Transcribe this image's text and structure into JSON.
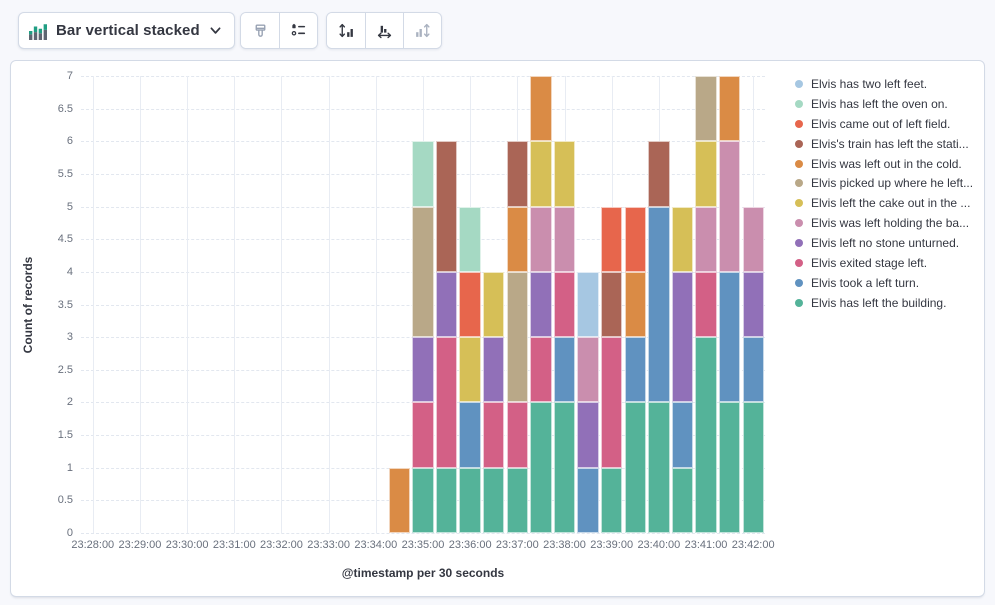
{
  "toolbar": {
    "chart_type": {
      "label": "Bar vertical stacked",
      "icon": "bar-vertical-stacked-icon",
      "chevron": "chevron-down-icon"
    },
    "style_buttons": [
      {
        "icon": "paint-brush-icon",
        "enabled": false
      },
      {
        "icon": "legend-settings-icon",
        "enabled": true
      }
    ],
    "axis_buttons": [
      {
        "icon": "axis-left-icon",
        "enabled": true
      },
      {
        "icon": "axis-bottom-icon",
        "enabled": true
      },
      {
        "icon": "axis-right-icon",
        "enabled": false
      }
    ]
  },
  "chart_data": {
    "type": "bar",
    "stacked": true,
    "orientation": "vertical",
    "xlabel": "@timestamp per 30 seconds",
    "ylabel": "Count of records",
    "ylim": [
      0,
      7
    ],
    "y_tick_labels": [
      "0",
      "0.5",
      "1",
      "1.5",
      "2",
      "2.5",
      "3",
      "3.5",
      "4",
      "4.5",
      "5",
      "5.5",
      "6",
      "6.5",
      "7"
    ],
    "y_tick_step": 0.5,
    "band_count": 29,
    "band_interval_seconds": 30,
    "x_start": "23:28:00",
    "x_tick_labels": [
      "23:28:00",
      "23:29:00",
      "23:30:00",
      "23:31:00",
      "23:32:00",
      "23:33:00",
      "23:34:00",
      "23:35:00",
      "23:36:00",
      "23:37:00",
      "23:38:00",
      "23:39:00",
      "23:40:00",
      "23:41:00",
      "23:42:00"
    ],
    "grid": {
      "horizontal": "dashed",
      "vertical": "solid"
    },
    "legend_position": "right",
    "legend": [
      {
        "label": "Elvis has two left feet.",
        "color": "#A6C7E2"
      },
      {
        "label": "Elvis has left the oven on.",
        "color": "#A5D9C3"
      },
      {
        "label": "Elvis came out of left field.",
        "color": "#E7664C"
      },
      {
        "label": "Elvis's train has left the stati...",
        "color": "#AA6556"
      },
      {
        "label": "Elvis was left out in the cold.",
        "color": "#DA8B45"
      },
      {
        "label": "Elvis picked up where he left...",
        "color": "#B9A888"
      },
      {
        "label": "Elvis left the cake out in the ...",
        "color": "#D6BF57"
      },
      {
        "label": "Elvis was left holding the ba...",
        "color": "#CA8EAE"
      },
      {
        "label": "Elvis left no stone unturned.",
        "color": "#9170B8"
      },
      {
        "label": "Elvis exited stage left.",
        "color": "#D36086"
      },
      {
        "label": "Elvis took a left turn.",
        "color": "#6092C0"
      },
      {
        "label": "Elvis has left the building.",
        "color": "#54B399"
      }
    ],
    "bars": [
      {
        "time": "23:34:30",
        "band": 13,
        "total": 1,
        "segments": [
          [
            4,
            1
          ]
        ]
      },
      {
        "time": "23:35:00",
        "band": 14,
        "total": 6,
        "segments": [
          [
            11,
            1
          ],
          [
            9,
            1
          ],
          [
            8,
            1
          ],
          [
            5,
            2
          ],
          [
            1,
            1
          ]
        ]
      },
      {
        "time": "23:35:30",
        "band": 15,
        "total": 6,
        "segments": [
          [
            11,
            1
          ],
          [
            9,
            2
          ],
          [
            8,
            1
          ],
          [
            3,
            2
          ]
        ]
      },
      {
        "time": "23:36:00",
        "band": 16,
        "total": 5,
        "segments": [
          [
            11,
            1
          ],
          [
            10,
            1
          ],
          [
            6,
            1
          ],
          [
            2,
            1
          ],
          [
            1,
            1
          ]
        ]
      },
      {
        "time": "23:36:30",
        "band": 17,
        "total": 4,
        "segments": [
          [
            11,
            1
          ],
          [
            9,
            1
          ],
          [
            8,
            1
          ],
          [
            6,
            1
          ]
        ]
      },
      {
        "time": "23:37:00",
        "band": 18,
        "total": 6,
        "segments": [
          [
            11,
            1
          ],
          [
            9,
            1
          ],
          [
            5,
            2
          ],
          [
            4,
            1
          ],
          [
            3,
            1
          ]
        ]
      },
      {
        "time": "23:37:30",
        "band": 19,
        "total": 7,
        "segments": [
          [
            11,
            2
          ],
          [
            9,
            1
          ],
          [
            8,
            1
          ],
          [
            7,
            1
          ],
          [
            6,
            1
          ],
          [
            4,
            1
          ]
        ]
      },
      {
        "time": "23:38:00",
        "band": 20,
        "total": 6,
        "segments": [
          [
            11,
            2
          ],
          [
            10,
            1
          ],
          [
            9,
            1
          ],
          [
            7,
            1
          ],
          [
            6,
            1
          ]
        ]
      },
      {
        "time": "23:38:30",
        "band": 21,
        "total": 4,
        "segments": [
          [
            10,
            1
          ],
          [
            8,
            1
          ],
          [
            7,
            1
          ],
          [
            0,
            1
          ]
        ]
      },
      {
        "time": "23:39:00",
        "band": 22,
        "total": 5,
        "segments": [
          [
            11,
            1
          ],
          [
            9,
            2
          ],
          [
            3,
            1
          ],
          [
            2,
            1
          ]
        ]
      },
      {
        "time": "23:39:30",
        "band": 23,
        "total": 5,
        "segments": [
          [
            11,
            2
          ],
          [
            10,
            1
          ],
          [
            4,
            1
          ],
          [
            2,
            1
          ]
        ]
      },
      {
        "time": "23:40:00",
        "band": 24,
        "total": 6,
        "segments": [
          [
            11,
            2
          ],
          [
            10,
            3
          ],
          [
            3,
            1
          ]
        ]
      },
      {
        "time": "23:40:30",
        "band": 25,
        "total": 5,
        "segments": [
          [
            11,
            1
          ],
          [
            10,
            1
          ],
          [
            8,
            2
          ],
          [
            6,
            1
          ]
        ]
      },
      {
        "time": "23:41:00",
        "band": 26,
        "total": 7,
        "segments": [
          [
            11,
            3
          ],
          [
            9,
            1
          ],
          [
            7,
            1
          ],
          [
            6,
            1
          ],
          [
            5,
            1
          ]
        ]
      },
      {
        "time": "23:41:30",
        "band": 27,
        "total": 7,
        "segments": [
          [
            11,
            2
          ],
          [
            10,
            2
          ],
          [
            7,
            2
          ],
          [
            4,
            1
          ]
        ]
      },
      {
        "time": "23:42:00",
        "band": 28,
        "total": 5,
        "segments": [
          [
            11,
            2
          ],
          [
            10,
            1
          ],
          [
            8,
            1
          ],
          [
            7,
            1
          ]
        ]
      }
    ]
  }
}
